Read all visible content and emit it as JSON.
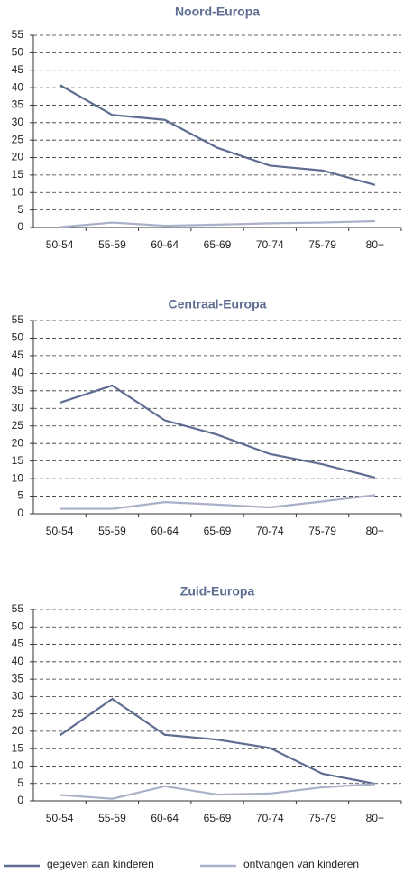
{
  "chart_data": [
    {
      "type": "line",
      "title": "Noord-Europa",
      "categories": [
        "50-54",
        "55-59",
        "60-64",
        "65-69",
        "70-74",
        "75-79",
        "80+"
      ],
      "series": [
        {
          "name": "gegeven aan kinderen",
          "color": "#5e6d91",
          "values": [
            40.8,
            32.2,
            30.8,
            22.8,
            17.7,
            16.3,
            12.2
          ]
        },
        {
          "name": "ontvangen van kinderen",
          "color": "#a9b0c8",
          "values": [
            0.1,
            1.4,
            0.5,
            0.8,
            1.2,
            1.4,
            1.8
          ]
        }
      ],
      "ylim": [
        0,
        55
      ],
      "yticks": [
        0,
        5,
        10,
        15,
        20,
        25,
        30,
        35,
        40,
        45,
        50,
        55
      ],
      "grid": true,
      "legend": "bottom"
    },
    {
      "type": "line",
      "title": "Centraal-Europa",
      "categories": [
        "50-54",
        "55-59",
        "60-64",
        "65-69",
        "70-74",
        "75-79",
        "80+"
      ],
      "series": [
        {
          "name": "gegeven aan kinderen",
          "color": "#5e6d91",
          "values": [
            31.6,
            36.5,
            26.6,
            22.5,
            17.0,
            14.1,
            10.3
          ]
        },
        {
          "name": "ontvangen van kinderen",
          "color": "#a9b0c8",
          "values": [
            1.4,
            1.4,
            3.3,
            2.6,
            1.8,
            3.5,
            5.3
          ]
        }
      ],
      "ylim": [
        0,
        55
      ],
      "yticks": [
        0,
        5,
        10,
        15,
        20,
        25,
        30,
        35,
        40,
        45,
        50,
        55
      ],
      "grid": true,
      "legend": "bottom"
    },
    {
      "type": "line",
      "title": "Zuid-Europa",
      "categories": [
        "50-54",
        "55-59",
        "60-64",
        "65-69",
        "70-74",
        "75-79",
        "80+"
      ],
      "series": [
        {
          "name": "gegeven aan kinderen",
          "color": "#5e6d91",
          "values": [
            18.8,
            29.3,
            19.0,
            17.6,
            15.2,
            7.8,
            4.9
          ]
        },
        {
          "name": "ontvangen van kinderen",
          "color": "#a9b0c8",
          "values": [
            1.7,
            0.6,
            4.2,
            1.8,
            2.1,
            3.9,
            4.8
          ]
        }
      ],
      "ylim": [
        0,
        55
      ],
      "yticks": [
        0,
        5,
        10,
        15,
        20,
        25,
        30,
        35,
        40,
        45,
        50,
        55
      ],
      "grid": true,
      "legend": "bottom"
    }
  ]
}
